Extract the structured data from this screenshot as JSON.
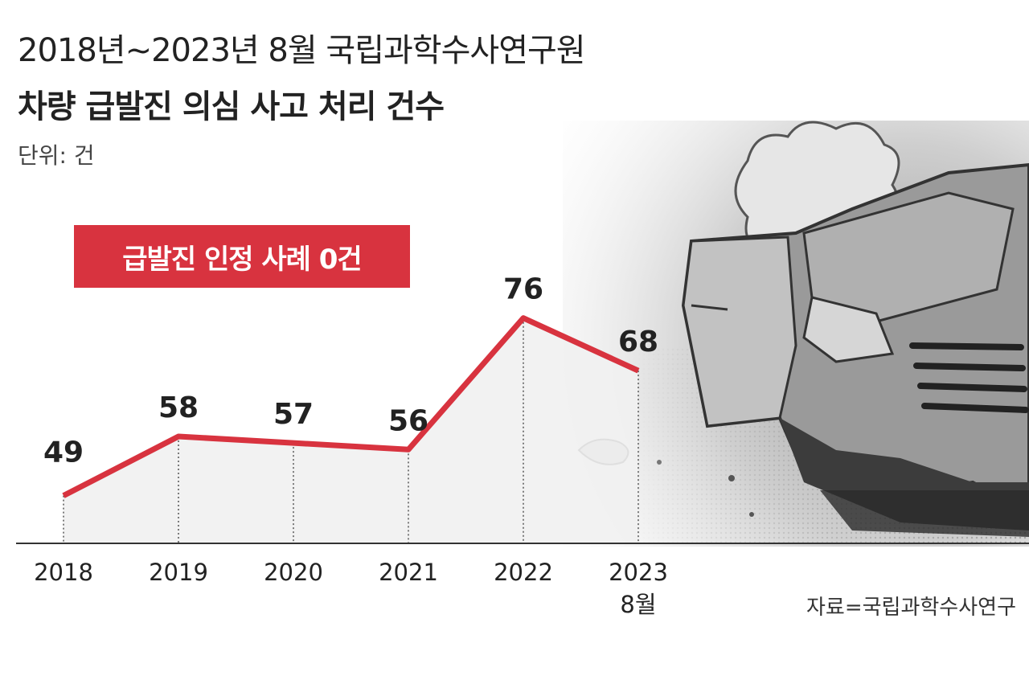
{
  "header": {
    "title": "2018년~2023년 8월 국립과학수사연구원",
    "subtitle": "차량 급발진 의심 사고 처리 건수",
    "unit": "단위: 건"
  },
  "badge": {
    "text": "급발진 인정 사례 0건"
  },
  "source": "자료=국립과학수사연구",
  "colors": {
    "line": "#d8333f",
    "badge": "#d8333f",
    "fill": "#f1f1f1"
  },
  "illustration": {
    "icon": "crashed-car-illustration"
  },
  "chart_data": {
    "type": "line",
    "categories": [
      "2018",
      "2019",
      "2020",
      "2021",
      "2022",
      "2023"
    ],
    "category_sublabels": [
      "",
      "",
      "",
      "",
      "",
      "8월"
    ],
    "values": [
      49,
      58,
      57,
      56,
      76,
      68
    ],
    "data_labels": [
      "49",
      "58",
      "57",
      "56",
      "76",
      "68"
    ],
    "title": "차량 급발진 의심 사고 처리 건수",
    "ylabel": "단위: 건",
    "ylim": [
      30,
      80
    ],
    "grid": false,
    "legend": "none"
  }
}
